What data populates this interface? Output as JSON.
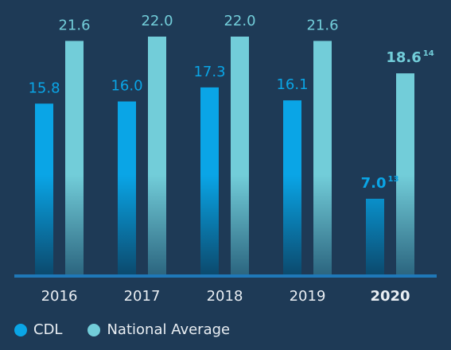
{
  "chart_data": {
    "type": "bar",
    "categories": [
      "2016",
      "2017",
      "2018",
      "2019",
      "2020"
    ],
    "highlight_category": "2020",
    "series": [
      {
        "name": "CDL",
        "color": "#0aa5e6",
        "values": [
          15.8,
          16.0,
          17.3,
          16.1,
          7.0
        ],
        "labels": [
          "15.8",
          "16.0",
          "17.3",
          "16.1",
          "7.0"
        ],
        "footnotes": [
          "",
          "",
          "",
          "",
          "13"
        ]
      },
      {
        "name": "National Average",
        "color": "#72cdd9",
        "values": [
          21.6,
          22.0,
          22.0,
          21.6,
          18.6
        ],
        "labels": [
          "21.6",
          "22.0",
          "22.0",
          "21.6",
          "18.6"
        ],
        "footnotes": [
          "",
          "",
          "",
          "",
          "14"
        ]
      }
    ],
    "ylim": [
      0,
      22.0
    ],
    "grid": false,
    "legend_placement": "bottom-left"
  }
}
